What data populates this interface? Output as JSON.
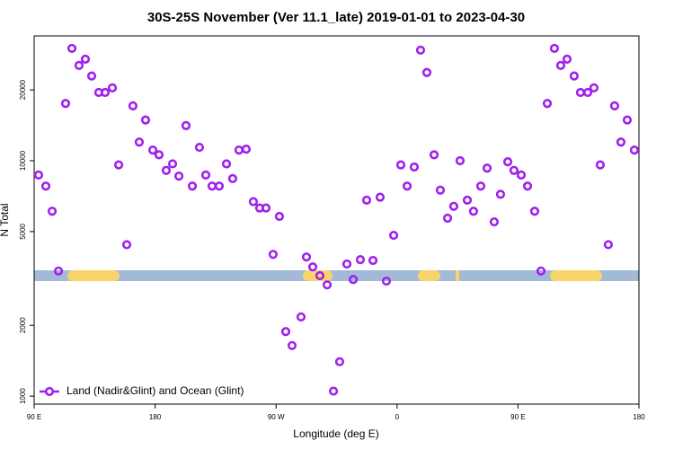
{
  "chart_data": {
    "type": "scatter",
    "title": "30S-25S November (Ver 11.1_late)   2019-01-01 to 2023-04-30",
    "xlabel": "Longitude (deg E)",
    "ylabel": "N Total",
    "log_y": true,
    "legend": "bottom-left",
    "xlim": [
      90,
      540
    ],
    "xticks": [
      {
        "value": 90,
        "label": "90 E"
      },
      {
        "value": 180,
        "label": "180"
      },
      {
        "value": 270,
        "label": "90 W"
      },
      {
        "value": 360,
        "label": "0"
      },
      {
        "value": 450,
        "label": "90 E"
      },
      {
        "value": 540,
        "label": "180"
      }
    ],
    "ylim": [
      925,
      33900
    ],
    "yticks": [
      1000,
      2000,
      5000,
      10000,
      20000
    ],
    "series": [
      {
        "name": "Land (Nadir&Glint) and Ocean (Glint)",
        "color": "#a020f0",
        "x": [
          93.3,
          98.7,
          103.4,
          108.1,
          113.4,
          118.1,
          123.4,
          128.1,
          132.8,
          138.1,
          142.8,
          148.2,
          152.9,
          158.9,
          163.5,
          168.2,
          172.9,
          178.3,
          182.9,
          188.3,
          193.0,
          197.7,
          203.0,
          207.7,
          213.0,
          217.7,
          222.4,
          227.7,
          233.1,
          237.7,
          242.4,
          247.8,
          253.1,
          257.8,
          262.5,
          267.8,
          272.5,
          277.2,
          281.9,
          288.6,
          292.6,
          297.3,
          302.6,
          308.0,
          312.7,
          317.3,
          322.7,
          327.4,
          332.7,
          337.4,
          342.1,
          347.4,
          352.1,
          357.5,
          362.8,
          367.5,
          372.8,
          377.5,
          382.2,
          387.6,
          392.2,
          397.6,
          402.2,
          406.9,
          412.3,
          416.9,
          422.3,
          427.0,
          432.3,
          437.0,
          442.4,
          447.0,
          452.4,
          457.1,
          462.4,
          467.1,
          471.8,
          477.1,
          481.8,
          486.5,
          491.8,
          496.5,
          501.9,
          506.5,
          511.2,
          517.2,
          521.9,
          526.6,
          531.3,
          536.6
        ],
        "values": [
          8700,
          7800,
          6100,
          3400,
          17500,
          30000,
          25400,
          27000,
          22900,
          19500,
          19500,
          20400,
          9600,
          4400,
          17100,
          12000,
          14900,
          11100,
          10600,
          9100,
          9700,
          8600,
          14100,
          7800,
          11400,
          8700,
          7800,
          7800,
          9700,
          8400,
          11100,
          11200,
          6700,
          6300,
          6300,
          4000,
          5800,
          1880,
          1640,
          2170,
          3900,
          3540,
          3250,
          2970,
          1050,
          1400,
          3640,
          3130,
          3800,
          6800,
          3770,
          7000,
          3080,
          4820,
          9600,
          7800,
          9400,
          29500,
          23700,
          10600,
          7500,
          5700,
          6400,
          10000,
          6800,
          6100,
          7800,
          9300,
          5500,
          7200,
          9900,
          9100,
          8700,
          7800,
          6100,
          3400,
          17500,
          30000,
          25400,
          27000,
          22900,
          19500,
          19500,
          20400,
          9600,
          4400,
          17100,
          12000,
          14900,
          11100
        ]
      }
    ]
  }
}
